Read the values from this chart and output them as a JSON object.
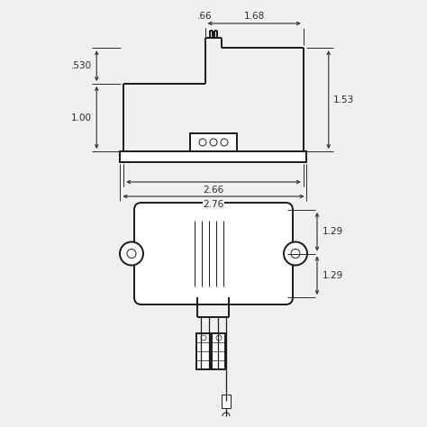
{
  "bg_color": "#f0f0f0",
  "line_color": "#1a1a1a",
  "dim_color": "#2a2a2a",
  "lw": 1.4,
  "thin_lw": 0.7,
  "fig_size": [
    4.74,
    4.74
  ],
  "dpi": 100,
  "annotations": {
    "dim_066": ".66",
    "dim_168": "1.68",
    "dim_530": ".530",
    "dim_100": "1.00",
    "dim_153": "1.53",
    "dim_266": "2.66",
    "dim_276": "2.76",
    "dim_129a": "1.29",
    "dim_129b": "1.29"
  }
}
